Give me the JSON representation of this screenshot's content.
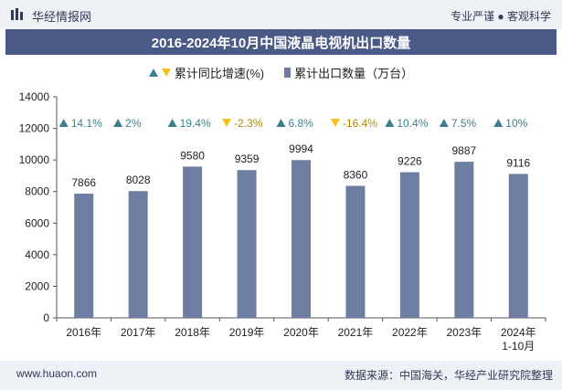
{
  "header": {
    "brand": "华经情报网",
    "slogan": "专业严谨 ● 客观科学"
  },
  "legend": {
    "growth_label": "累计同比增速(%)",
    "volume_label": "累计出口数量（万台）"
  },
  "footer": {
    "url": "www.huaon.com",
    "source": "数据来源：中国海关，华经产业研究院整理"
  },
  "colors": {
    "bar": "#6e7ea3",
    "up": "#3d7f8f",
    "down": "#f2c21b",
    "title_bg": "#4a5a86"
  },
  "chart_data": {
    "type": "bar",
    "title": "2016-2024年10月中国液晶电视机出口数量",
    "categories": [
      "2016年",
      "2017年",
      "2018年",
      "2019年",
      "2020年",
      "2021年",
      "2022年",
      "2023年",
      "2024年\n1-10月"
    ],
    "series": [
      {
        "name": "累计出口数量（万台）",
        "values": [
          7866,
          8028,
          9580,
          9359,
          9994,
          8360,
          9226,
          9887,
          9116
        ]
      },
      {
        "name": "累计同比增速(%)",
        "values": [
          14.1,
          2,
          19.4,
          -2.3,
          6.8,
          -16.4,
          10.4,
          7.5,
          10
        ]
      }
    ],
    "growth_labels": [
      "14.1%",
      "2%",
      "19.4%",
      "-2.3%",
      "6.8%",
      "-16.4%",
      "10.4%",
      "7.5%",
      "10%"
    ],
    "value_labels": [
      "7866",
      "8028",
      "9580",
      "9359",
      "9994",
      "8360",
      "9226",
      "9887",
      "9116"
    ],
    "ylim": [
      0,
      14000
    ],
    "yticks": [
      0,
      2000,
      4000,
      6000,
      8000,
      10000,
      12000,
      14000
    ],
    "xlabel": "",
    "ylabel": "",
    "grid": false,
    "legend_position": "top-center"
  }
}
